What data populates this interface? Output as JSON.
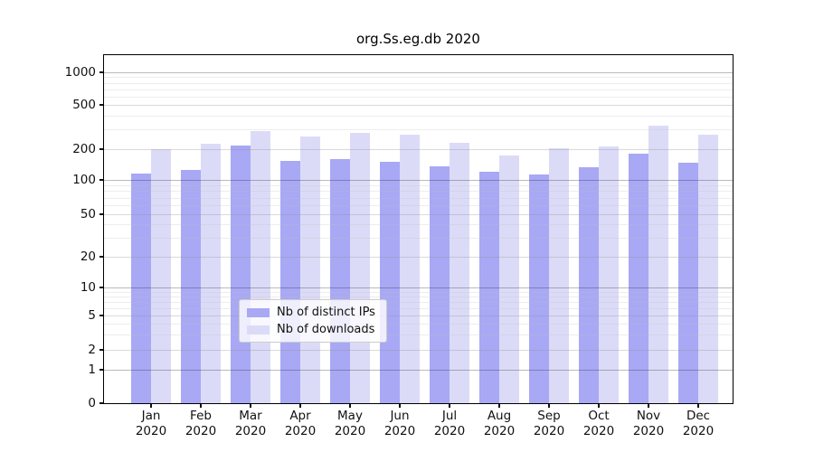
{
  "title": "org.Ss.eg.db 2020",
  "colors": {
    "distinct_ips": "#a8a8f5",
    "downloads": "#dbdbf8"
  },
  "legend": {
    "items": [
      {
        "label": "Nb of distinct IPs"
      },
      {
        "label": "Nb of downloads"
      }
    ]
  },
  "chart_data": {
    "type": "bar",
    "title": "org.Ss.eg.db 2020",
    "categories": [
      "Jan 2020",
      "Feb 2020",
      "Mar 2020",
      "Apr 2020",
      "May 2020",
      "Jun 2020",
      "Jul 2020",
      "Aug 2020",
      "Sep 2020",
      "Oct 2020",
      "Nov 2020",
      "Dec 2020"
    ],
    "series": [
      {
        "name": "Nb of distinct IPs",
        "color": "#a8a8f5",
        "values": [
          115,
          125,
          215,
          155,
          160,
          150,
          135,
          120,
          112,
          133,
          180,
          147
        ]
      },
      {
        "name": "Nb of downloads",
        "color": "#dbdbf8",
        "values": [
          199,
          225,
          291,
          262,
          280,
          271,
          226,
          172,
          205,
          210,
          325,
          268
        ]
      }
    ],
    "xlabel": "",
    "ylabel": "",
    "yticks": [
      0,
      1,
      2,
      5,
      10,
      20,
      50,
      100,
      200,
      500,
      1000
    ],
    "yscale": "log-like (logarithmic above 1, linear segment 0 to 1)",
    "ylim": [
      0,
      1450
    ],
    "grid": true,
    "legend_position": "lower center"
  }
}
